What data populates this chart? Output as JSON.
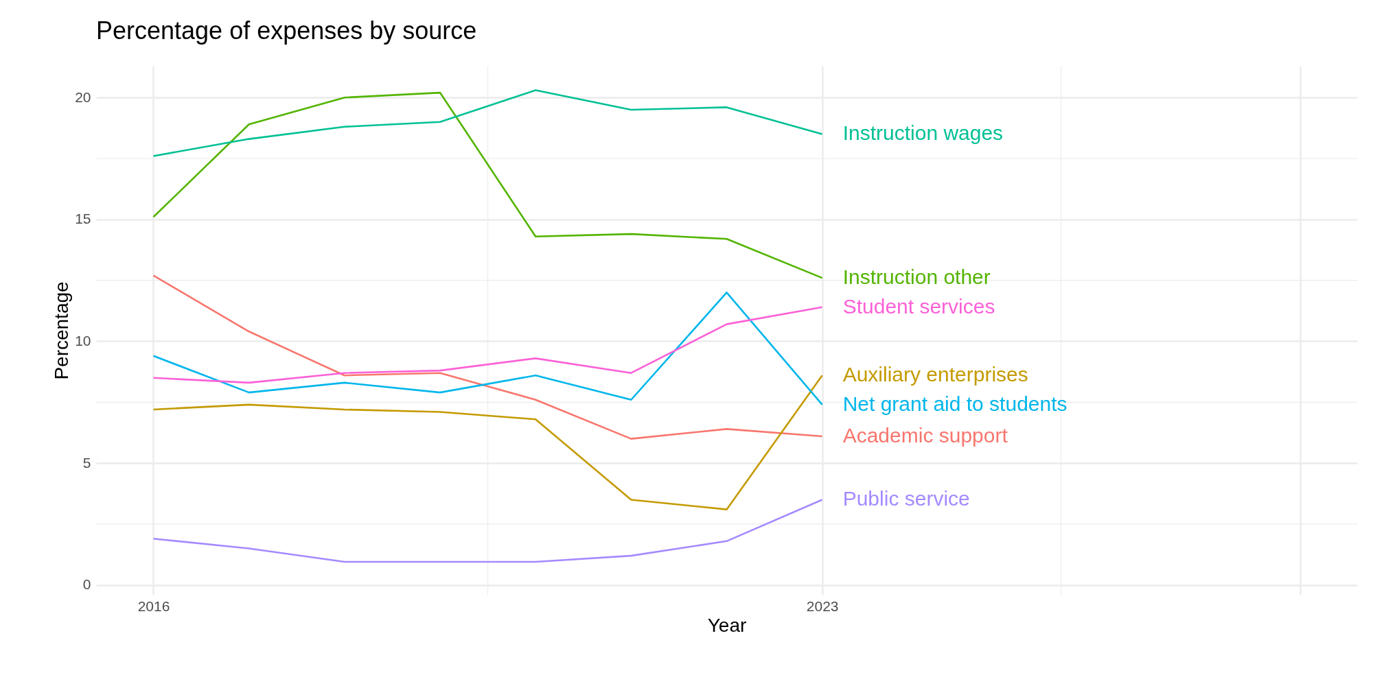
{
  "chart_data": {
    "type": "line",
    "title": "Percentage of expenses by source",
    "xlabel": "Year",
    "ylabel": "Percentage",
    "x": [
      2016,
      2017,
      2018,
      2019,
      2020,
      2021,
      2022,
      2023
    ],
    "series": [
      {
        "name": "Academic support",
        "color": "#f8766d",
        "values": [
          12.7,
          10.4,
          8.6,
          8.7,
          7.6,
          6.0,
          6.4,
          6.1
        ]
      },
      {
        "name": "Auxiliary enterprises",
        "color": "#c49a00",
        "values": [
          7.2,
          7.4,
          7.2,
          7.1,
          6.8,
          3.5,
          3.1,
          8.6
        ]
      },
      {
        "name": "Instruction other",
        "color": "#53b400",
        "values": [
          15.1,
          18.9,
          20.0,
          20.2,
          14.3,
          14.4,
          14.2,
          12.6
        ]
      },
      {
        "name": "Instruction wages",
        "color": "#00c094",
        "values": [
          17.6,
          18.3,
          18.8,
          19.0,
          20.3,
          19.5,
          19.6,
          18.5
        ]
      },
      {
        "name": "Net grant aid to students",
        "color": "#00b6eb",
        "values": [
          9.4,
          7.9,
          8.3,
          7.9,
          8.6,
          7.6,
          12.0,
          7.4
        ]
      },
      {
        "name": "Public service",
        "color": "#a58aff",
        "values": [
          1.9,
          1.5,
          0.95,
          0.95,
          0.95,
          1.2,
          1.8,
          3.5
        ]
      },
      {
        "name": "Student services",
        "color": "#fb61d7",
        "values": [
          8.5,
          8.3,
          8.7,
          8.8,
          9.3,
          8.7,
          10.7,
          11.4
        ]
      }
    ],
    "xlim": [
      2015.4,
      2028.6
    ],
    "xticks": [
      2016,
      2023,
      {
        "value": 2028,
        "label": null
      }
    ],
    "ylim": [
      -0.4,
      21.3
    ],
    "yticks": [
      0,
      5,
      10,
      15,
      20
    ],
    "grid": true,
    "legend": false,
    "line_style": "solid"
  }
}
